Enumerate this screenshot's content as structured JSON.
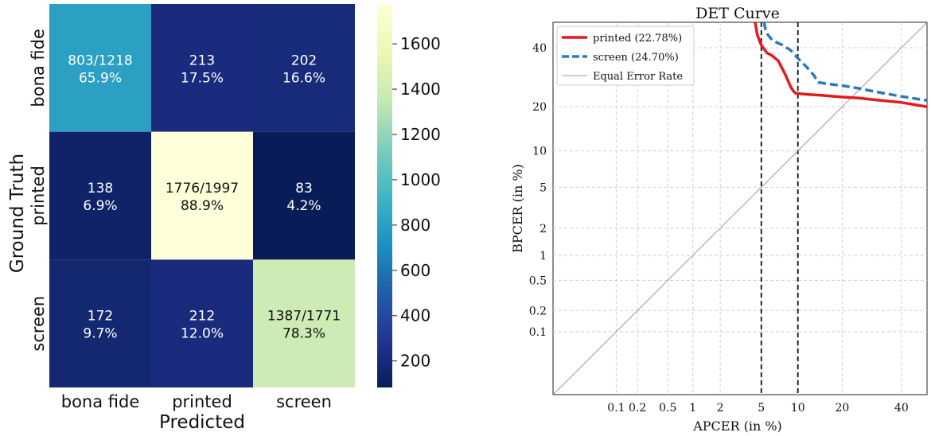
{
  "chart_data": [
    {
      "type": "heatmap",
      "xlabel": "Predicted",
      "ylabel": "Ground Truth",
      "categories": [
        "bona fide",
        "printed",
        "screen"
      ],
      "counts": [
        [
          803,
          213,
          202
        ],
        [
          138,
          1776,
          83
        ],
        [
          172,
          212,
          1387
        ]
      ],
      "cells": [
        [
          {
            "line1": "803/1218",
            "line2": "65.9%"
          },
          {
            "line1": "213",
            "line2": "17.5%"
          },
          {
            "line1": "202",
            "line2": "16.6%"
          }
        ],
        [
          {
            "line1": "138",
            "line2": "6.9%"
          },
          {
            "line1": "1776/1997",
            "line2": "88.9%"
          },
          {
            "line1": "83",
            "line2": "4.2%"
          }
        ],
        [
          {
            "line1": "172",
            "line2": "9.7%"
          },
          {
            "line1": "212",
            "line2": "12.0%"
          },
          {
            "line1": "1387/1771",
            "line2": "78.3%"
          }
        ]
      ],
      "colorbar": {
        "min": 83,
        "max": 1776,
        "ticks": [
          200,
          400,
          600,
          800,
          1000,
          1200,
          1400,
          1600
        ],
        "tick_labels": [
          "200",
          "400",
          "600",
          "800",
          "1000",
          "1200",
          "1400",
          "1600"
        ],
        "colormap": "YlGnBu"
      }
    },
    {
      "type": "line",
      "title": "DET Curve",
      "xlabel": "APCER (in %)",
      "ylabel": "BPCER (in %)",
      "scale": "normal-deviate (probit)",
      "xlim": [
        0.01,
        50
      ],
      "ylim": [
        0.01,
        50
      ],
      "xticks": [
        0.1,
        0.2,
        0.5,
        1,
        2,
        5,
        10,
        20,
        40
      ],
      "xtick_labels": [
        "0.1",
        "0.2",
        "0.5",
        "1",
        "2",
        "5",
        "10",
        "20",
        "40"
      ],
      "yticks": [
        0.1,
        0.2,
        0.5,
        1,
        2,
        5,
        10,
        20,
        40
      ],
      "ytick_labels": [
        "0.1",
        "0.2",
        "0.5",
        "1",
        "2",
        "5",
        "10",
        "20",
        "40"
      ],
      "grid": true,
      "legend_position": "top-left",
      "vlines": [
        5,
        10
      ],
      "series": [
        {
          "name": "printed (22.78%)",
          "color": "#e41a1c",
          "style": "solid",
          "x": [
            4.4,
            4.6,
            5.0,
            5.6,
            6.2,
            7.0,
            8.0,
            8.8,
            9.3,
            9.6,
            10.5,
            12.0,
            15.0,
            20.0,
            25.0,
            30.0,
            40.0,
            50.0
          ],
          "y": [
            50,
            45,
            41,
            38,
            37,
            35,
            30,
            26,
            24.5,
            24,
            23.8,
            23.6,
            23.3,
            22.8,
            22.5,
            22.0,
            21.2,
            20.0
          ]
        },
        {
          "name": "screen (24.70%)",
          "color": "#2b7bba",
          "style": "dashed",
          "x": [
            5.3,
            5.5,
            6.2,
            6.8,
            7.6,
            8.8,
            10.0,
            11.5,
            13.0,
            14.0,
            16.0,
            20.0,
            25.0,
            30.0,
            40.0,
            50.0
          ],
          "y": [
            50,
            46,
            43,
            42,
            41,
            39,
            36,
            33,
            30,
            27.5,
            27.0,
            26.4,
            25.5,
            24.5,
            23.0,
            21.8
          ]
        },
        {
          "name": "Equal Error Rate",
          "color": "#9a9a9a",
          "style": "solid",
          "x": [
            0.01,
            50
          ],
          "y": [
            0.01,
            50
          ]
        }
      ]
    }
  ]
}
